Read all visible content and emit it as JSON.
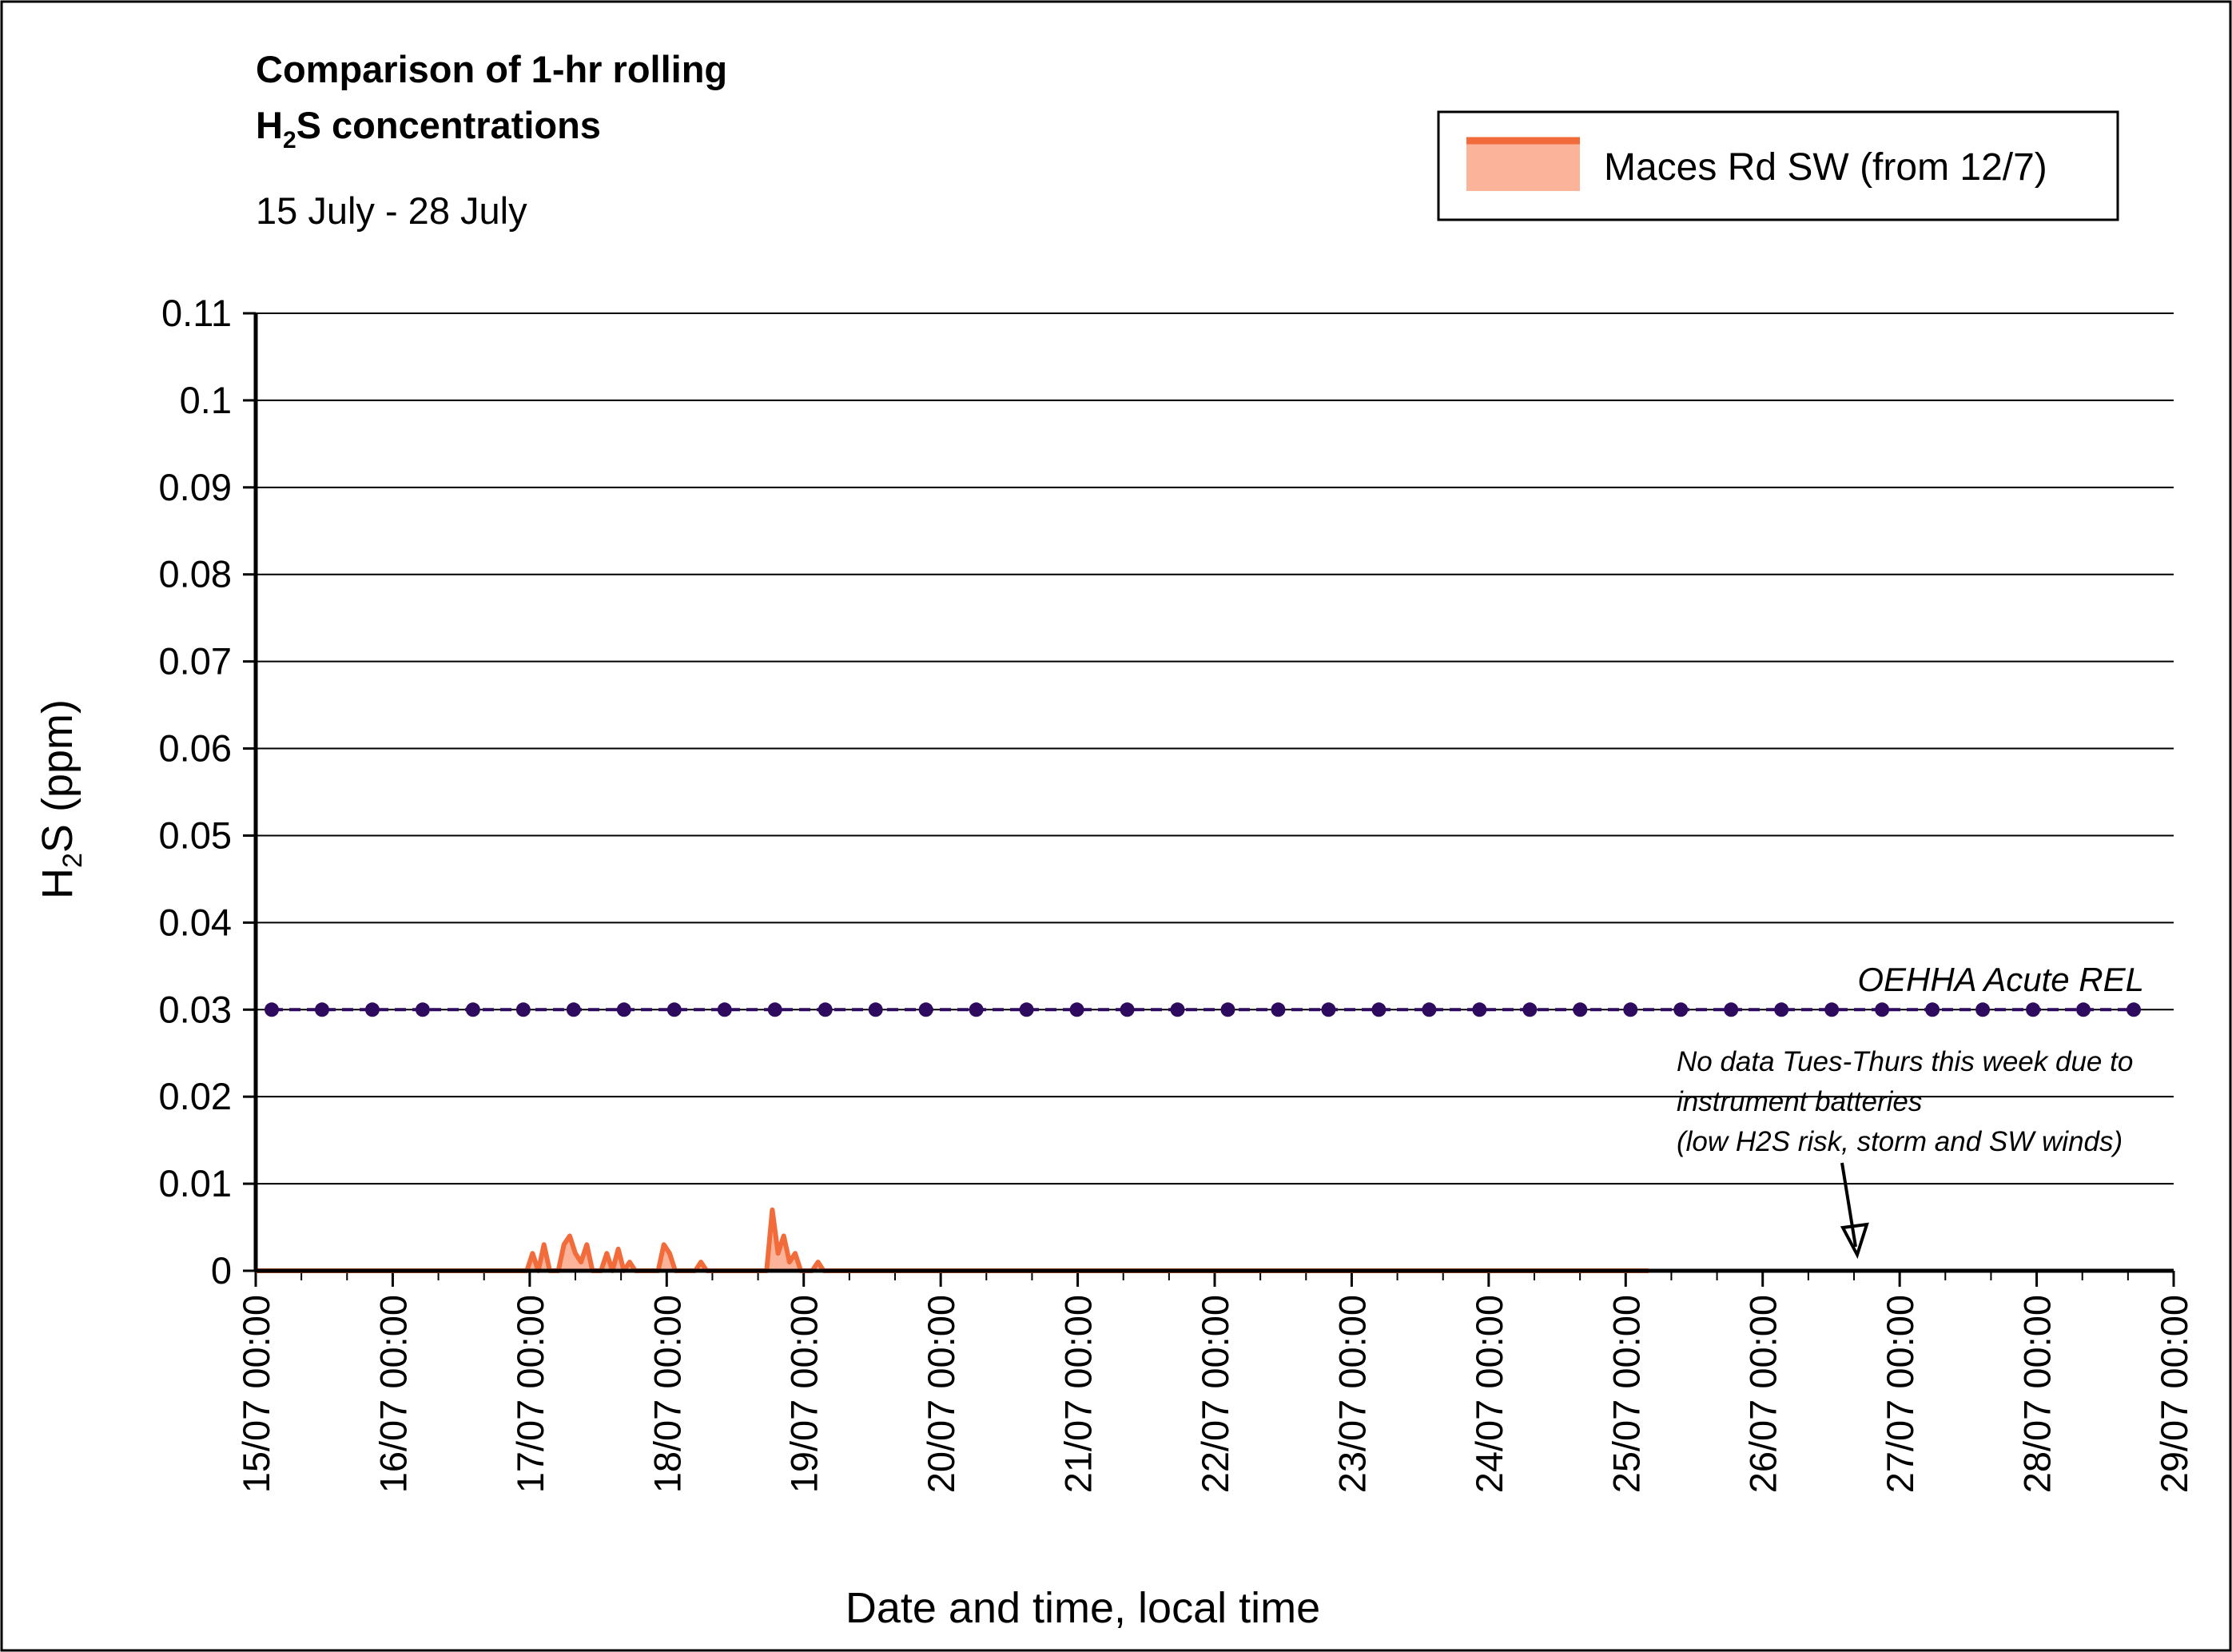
{
  "chart_data": {
    "type": "line",
    "title_line1": "Comparison of 1-hr rolling",
    "title_line2_prefix": "H",
    "title_line2_sub": "2",
    "title_line2_suffix": "S concentrations",
    "subtitle": "15 July - 28 July",
    "ylabel_prefix": "H",
    "ylabel_sub": "2",
    "ylabel_suffix": "S (ppm)",
    "xlabel": "Date and time, local time",
    "ylim": [
      0,
      0.11
    ],
    "y_ticks": [
      "0",
      "0.01",
      "0.02",
      "0.03",
      "0.04",
      "0.05",
      "0.06",
      "0.07",
      "0.08",
      "0.09",
      "0.1",
      "0.11"
    ],
    "x_range_days": [
      "15/07",
      "29/07"
    ],
    "x_ticks": [
      "15/07 00:00",
      "16/07 00:00",
      "17/07 00:00",
      "18/07 00:00",
      "19/07 00:00",
      "20/07 00:00",
      "21/07 00:00",
      "22/07 00:00",
      "23/07 00:00",
      "24/07 00:00",
      "25/07 00:00",
      "26/07 00:00",
      "27/07 00:00",
      "28/07 00:00",
      "29/07 00:00"
    ],
    "grid": true,
    "legend_position": "top-right",
    "legend_label": "Maces Rd SW (from 12/7)",
    "series": [
      {
        "name": "Maces Rd SW (from 12/7)",
        "color": "#f26b3a",
        "fill_color": "#fbb49a",
        "points": [
          [
            "15/07 00:00",
            0
          ],
          [
            "16/07 20:00",
            0
          ],
          [
            "16/07 23:30",
            0
          ],
          [
            "17/07 00:30",
            0.002
          ],
          [
            "17/07 01:30",
            0
          ],
          [
            "17/07 02:30",
            0.003
          ],
          [
            "17/07 03:30",
            0
          ],
          [
            "17/07 05:00",
            0
          ],
          [
            "17/07 06:00",
            0.003
          ],
          [
            "17/07 07:00",
            0.004
          ],
          [
            "17/07 08:00",
            0.002
          ],
          [
            "17/07 09:00",
            0.001
          ],
          [
            "17/07 10:00",
            0.003
          ],
          [
            "17/07 11:00",
            0
          ],
          [
            "17/07 12:30",
            0
          ],
          [
            "17/07 13:30",
            0.002
          ],
          [
            "17/07 14:30",
            0
          ],
          [
            "17/07 15:30",
            0.0025
          ],
          [
            "17/07 16:30",
            0
          ],
          [
            "17/07 17:30",
            0.001
          ],
          [
            "17/07 18:30",
            0
          ],
          [
            "17/07 22:30",
            0
          ],
          [
            "17/07 23:30",
            0.003
          ],
          [
            "18/07 00:30",
            0.002
          ],
          [
            "18/07 01:30",
            0
          ],
          [
            "18/07 05:00",
            0
          ],
          [
            "18/07 06:00",
            0.001
          ],
          [
            "18/07 07:00",
            0
          ],
          [
            "18/07 17:30",
            0
          ],
          [
            "18/07 18:30",
            0.007
          ],
          [
            "18/07 19:30",
            0.002
          ],
          [
            "18/07 20:30",
            0.004
          ],
          [
            "18/07 21:30",
            0.001
          ],
          [
            "18/07 22:30",
            0.002
          ],
          [
            "18/07 23:30",
            0
          ],
          [
            "19/07 01:30",
            0
          ],
          [
            "19/07 02:30",
            0.001
          ],
          [
            "19/07 03:30",
            0
          ],
          [
            "25/07 04:00",
            0
          ]
        ]
      },
      {
        "name": "OEHHA Acute REL",
        "color": "#2e0b5e",
        "value": 0.03
      }
    ],
    "annotations": [
      {
        "text": "OEHHA Acute REL"
      },
      {
        "lines": [
          "No data Tues-Thurs this week due to",
          "instrument batteries",
          "(low H2S risk, storm and SW winds)"
        ],
        "arrow_to": [
          "26/07 16:00",
          0
        ]
      }
    ]
  },
  "colors": {
    "series_line": "#f26b3a",
    "series_fill": "#fbb49a",
    "rel_line": "#2e0b5e",
    "axis": "#000000",
    "grid": "#000000"
  }
}
